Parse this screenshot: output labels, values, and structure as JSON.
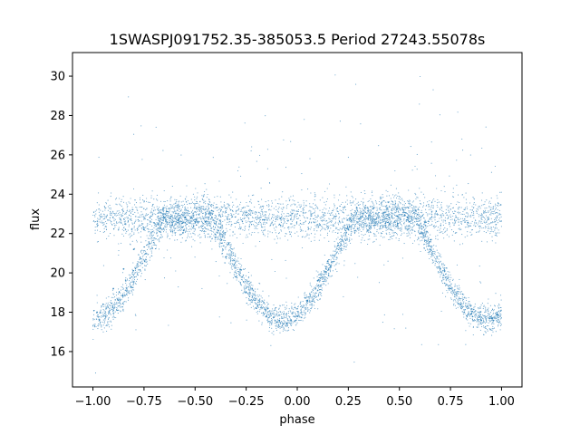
{
  "chart_data": {
    "type": "scatter",
    "title": "1SWASPJ091752.35-385053.5 Period 27243.55078s",
    "xlabel": "phase",
    "ylabel": "flux",
    "xlim": [
      -1.1,
      1.1
    ],
    "ylim": [
      14.2,
      31.2
    ],
    "x_ticks": [
      -1.0,
      -0.75,
      -0.5,
      -0.25,
      0.0,
      0.25,
      0.5,
      0.75,
      1.0
    ],
    "x_tick_labels": [
      "−1.00",
      "−0.75",
      "−0.50",
      "−0.25",
      "0.00",
      "0.25",
      "0.50",
      "0.75",
      "1.00"
    ],
    "y_ticks": [
      16,
      18,
      20,
      22,
      24,
      26,
      28,
      30
    ],
    "y_tick_labels": [
      "16",
      "18",
      "20",
      "22",
      "24",
      "26",
      "28",
      "30"
    ],
    "grid": false,
    "legend": "none",
    "series": [
      {
        "marker_color": "#1f77b4",
        "baseline_flux": 22.8,
        "baseline_scatter": 0.5,
        "eclipse_minimum_flux": 17.6,
        "eclipse_centers_phase": [
          -1.0,
          -0.07,
          0.93
        ],
        "eclipse_half_width_phase": 0.37,
        "points": [
          [
            -0.98,
            18.0
          ],
          [
            -0.95,
            18.4
          ],
          [
            -0.9,
            19.2
          ],
          [
            -0.85,
            20.2
          ],
          [
            -0.8,
            21.2
          ],
          [
            -0.75,
            22.2
          ],
          [
            -0.65,
            22.8
          ],
          [
            -0.55,
            22.8
          ],
          [
            -0.45,
            22.6
          ],
          [
            -0.4,
            21.8
          ],
          [
            -0.35,
            20.8
          ],
          [
            -0.3,
            19.8
          ],
          [
            -0.25,
            19.0
          ],
          [
            -0.2,
            18.2
          ],
          [
            -0.15,
            17.8
          ],
          [
            -0.1,
            17.5
          ],
          [
            -0.07,
            17.4
          ],
          [
            -0.03,
            17.6
          ],
          [
            0.0,
            17.8
          ],
          [
            0.05,
            18.6
          ],
          [
            0.1,
            19.6
          ],
          [
            0.15,
            20.6
          ],
          [
            0.2,
            21.4
          ],
          [
            0.25,
            22.2
          ],
          [
            0.35,
            22.9
          ],
          [
            0.45,
            22.8
          ],
          [
            0.55,
            22.6
          ],
          [
            0.6,
            22.0
          ],
          [
            0.65,
            21.2
          ],
          [
            0.7,
            20.2
          ],
          [
            0.75,
            19.2
          ],
          [
            0.8,
            18.4
          ],
          [
            0.85,
            17.9
          ],
          [
            0.9,
            17.6
          ],
          [
            0.95,
            17.7
          ],
          [
            0.98,
            17.9
          ]
        ]
      }
    ]
  }
}
